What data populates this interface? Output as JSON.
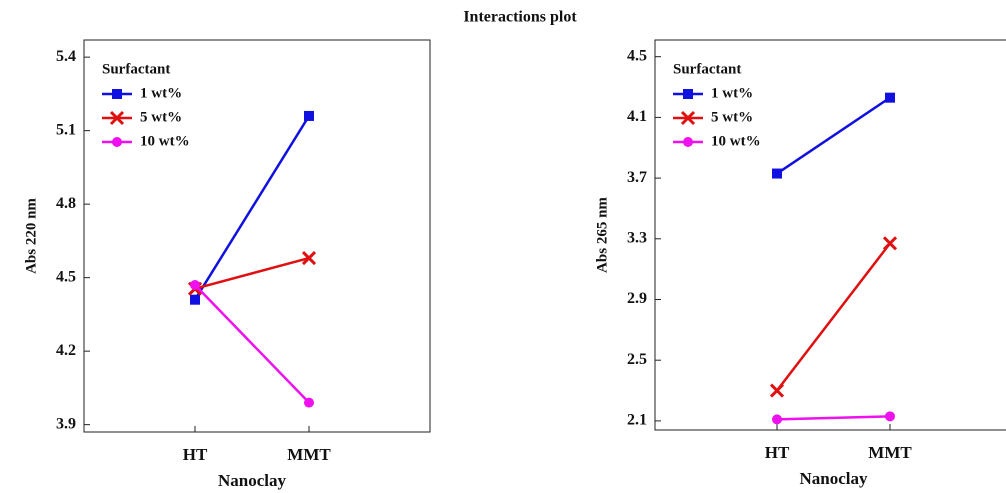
{
  "title": "Interactions plot",
  "chart_data": [
    {
      "type": "line",
      "x_label": "Nanoclay",
      "y_label": "Abs 220 nm",
      "legend_title": "Surfactant",
      "legend": "upper left",
      "categories": [
        "HT",
        "MMT"
      ],
      "ylim": [
        3.87,
        5.47
      ],
      "yticks": [
        {
          "value": 5.4,
          "label": "5.4"
        },
        {
          "value": 5.1,
          "label": "5.1"
        },
        {
          "value": 4.8,
          "label": "4.8"
        },
        {
          "value": 4.5,
          "label": "4.5"
        },
        {
          "value": 4.2,
          "label": "4.2"
        },
        {
          "value": 3.9,
          "label": "3.9"
        }
      ],
      "series": [
        {
          "name": "1 wt%",
          "color": "#1010e0",
          "marker": "square",
          "values": [
            4.41,
            5.16
          ]
        },
        {
          "name": "5 wt%",
          "color": "#e01010",
          "marker": "cross",
          "values": [
            4.455,
            4.58
          ]
        },
        {
          "name": "10 wt%",
          "color": "#ee10ee",
          "marker": "circle",
          "values": [
            4.47,
            3.99
          ]
        }
      ]
    },
    {
      "type": "line",
      "x_label": "Nanoclay",
      "y_label": "Abs 265 nm",
      "legend_title": "Surfactant",
      "legend": "upper left",
      "categories": [
        "HT",
        "MMT"
      ],
      "ylim": [
        2.04,
        4.61
      ],
      "yticks": [
        4.5,
        4.1,
        3.7,
        3.3,
        2.9,
        2.5,
        2.1
      ],
      "series": [
        {
          "name": "1 wt%",
          "color": "#1010e0",
          "marker": "square",
          "values": [
            3.73,
            4.23
          ]
        },
        {
          "name": "5 wt%",
          "color": "#e01010",
          "marker": "cross",
          "values": [
            2.3,
            3.27
          ]
        },
        {
          "name": "10 wt%",
          "color": "#ee10ee",
          "marker": "circle",
          "values": [
            2.11,
            2.13
          ]
        }
      ]
    }
  ]
}
